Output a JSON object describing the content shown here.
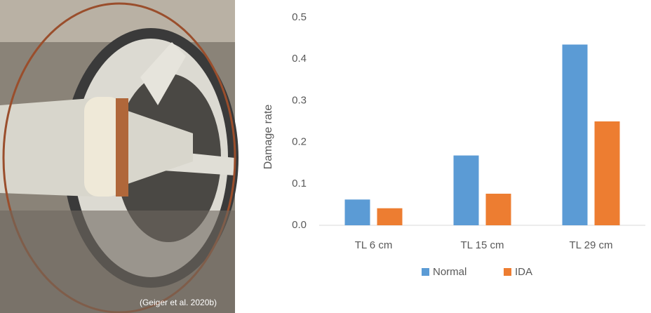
{
  "photo": {
    "caption": "(Geiger et al. 2020b)"
  },
  "chart_data": {
    "type": "bar",
    "y_label": "Damage rate",
    "categories": [
      "TL 6 cm",
      "TL 15 cm",
      "TL 29 cm"
    ],
    "series": [
      {
        "name": "Normal",
        "color": "#5b9bd5",
        "values": [
          0.062,
          0.168,
          0.435
        ]
      },
      {
        "name": "IDA",
        "color": "#ed7d31",
        "values": [
          0.041,
          0.076,
          0.25
        ]
      }
    ],
    "ylim": [
      0,
      0.5
    ],
    "yticks": [
      {
        "value": 0,
        "label": "0.0"
      },
      0.1,
      0.2,
      0.3,
      0.4,
      0.5
    ],
    "grid": false,
    "legend": "bottom"
  }
}
